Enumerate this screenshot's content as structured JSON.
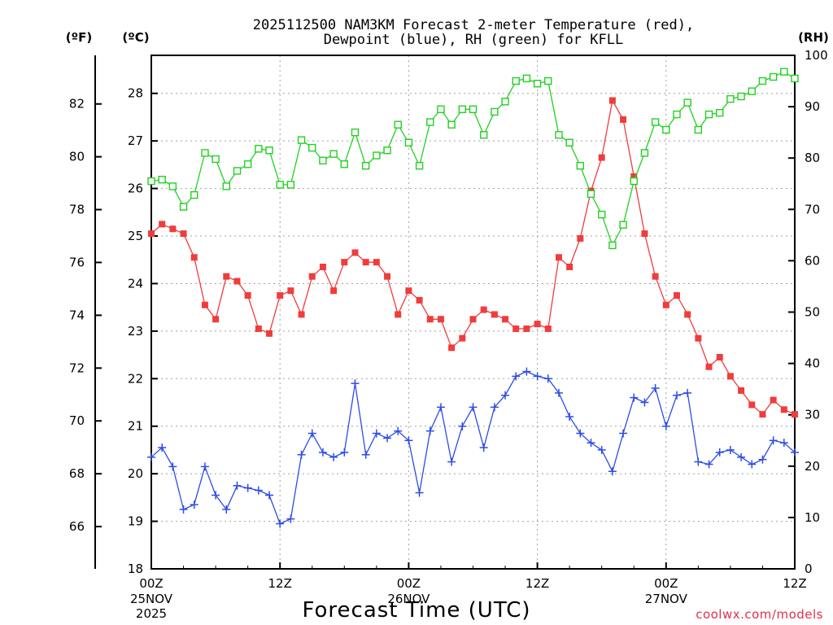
{
  "chart_data": {
    "type": "line",
    "title_line1": "2025112500 NAM3KM Forecast 2-meter Temperature (red),",
    "title_line2": "Dewpoint (blue), RH (green) for KFLL",
    "xlabel": "Forecast Time (UTC)",
    "credit": "coolwx.com/models",
    "left_outer_unit": "(ºF)",
    "left_inner_unit": "(ºC)",
    "right_unit": "(RH)",
    "ylim_c": [
      18,
      28.8
    ],
    "ylim_rh": [
      0,
      100
    ],
    "xlim_hours": [
      0,
      60
    ],
    "x_ticks": [
      {
        "hour": 0,
        "label": "00Z",
        "date": "25NOV",
        "year": "2025"
      },
      {
        "hour": 12,
        "label": "12Z",
        "date": "",
        "year": ""
      },
      {
        "hour": 24,
        "label": "00Z",
        "date": "26NOV",
        "year": ""
      },
      {
        "hour": 36,
        "label": "12Z",
        "date": "",
        "year": ""
      },
      {
        "hour": 48,
        "label": "00Z",
        "date": "27NOV",
        "year": ""
      },
      {
        "hour": 60,
        "label": "12Z",
        "date": "",
        "year": ""
      }
    ],
    "c_ticks": [
      18,
      19,
      20,
      21,
      22,
      23,
      24,
      25,
      26,
      27,
      28
    ],
    "f_ticks": [
      66,
      68,
      70,
      72,
      74,
      76,
      78,
      80,
      82
    ],
    "rh_ticks": [
      0,
      10,
      20,
      30,
      40,
      50,
      60,
      70,
      80,
      90,
      100
    ],
    "hours": [
      0,
      1,
      2,
      3,
      4,
      5,
      6,
      7,
      8,
      9,
      10,
      11,
      12,
      13,
      14,
      15,
      16,
      17,
      18,
      19,
      20,
      21,
      22,
      23,
      24,
      25,
      26,
      27,
      28,
      29,
      30,
      31,
      32,
      33,
      34,
      35,
      36,
      37,
      38,
      39,
      40,
      41,
      42,
      43,
      44,
      45,
      46,
      47,
      48,
      49,
      50,
      51,
      52,
      53,
      54,
      55,
      56,
      57,
      58,
      59,
      60
    ],
    "series": [
      {
        "name": "Temperature",
        "unit": "C",
        "color": "#f03c3c",
        "marker": "filled-square",
        "values": [
          25.05,
          25.25,
          25.15,
          25.05,
          24.55,
          23.55,
          23.25,
          24.15,
          24.05,
          23.75,
          23.05,
          22.95,
          23.75,
          23.85,
          23.35,
          24.15,
          24.35,
          23.85,
          24.45,
          24.65,
          24.45,
          24.45,
          24.15,
          23.35,
          23.85,
          23.65,
          23.25,
          23.25,
          22.65,
          22.85,
          23.25,
          23.45,
          23.35,
          23.25,
          23.05,
          23.05,
          23.15,
          23.05,
          24.55,
          24.35,
          24.95,
          25.95,
          26.65,
          27.85,
          27.45,
          26.25,
          25.05,
          24.15,
          23.55,
          23.75,
          23.35,
          22.85,
          22.25,
          22.45,
          22.05,
          21.75,
          21.45,
          21.25,
          21.55,
          21.35,
          21.25
        ]
      },
      {
        "name": "Dewpoint",
        "unit": "C",
        "color": "#2c4ce8",
        "marker": "plus",
        "values": [
          20.35,
          20.55,
          20.15,
          19.25,
          19.35,
          20.15,
          19.55,
          19.25,
          19.75,
          19.7,
          19.65,
          19.55,
          18.95,
          19.05,
          20.4,
          20.85,
          20.45,
          20.35,
          20.45,
          21.9,
          20.4,
          20.85,
          20.75,
          20.9,
          20.7,
          19.6,
          20.9,
          21.4,
          20.25,
          21.0,
          21.4,
          20.55,
          21.4,
          21.65,
          22.05,
          22.15,
          22.05,
          22.0,
          21.7,
          21.2,
          20.85,
          20.65,
          20.5,
          20.05,
          20.85,
          21.6,
          21.5,
          21.8,
          21.0,
          21.65,
          21.7,
          20.25,
          20.2,
          20.45,
          20.5,
          20.35,
          20.2,
          20.3,
          20.7,
          20.65,
          20.45
        ]
      },
      {
        "name": "RH",
        "unit": "%",
        "color": "#22d022",
        "marker": "open-square",
        "values": [
          75.5,
          75.8,
          74.5,
          70.5,
          72.8,
          81.0,
          79.8,
          74.5,
          77.5,
          78.8,
          81.8,
          81.5,
          74.8,
          74.8,
          83.5,
          82.0,
          79.5,
          80.8,
          78.8,
          85.0,
          78.5,
          80.5,
          81.5,
          86.5,
          83.0,
          78.5,
          87.0,
          89.5,
          86.5,
          89.5,
          89.5,
          84.5,
          89.0,
          91.0,
          95.0,
          95.5,
          94.5,
          95.0,
          84.5,
          83.0,
          78.5,
          73.0,
          69.0,
          63.0,
          67.0,
          75.5,
          81.0,
          87.0,
          85.5,
          88.5,
          90.8,
          85.5,
          88.5,
          88.8,
          91.5,
          92.0,
          93.0,
          95.0,
          95.8,
          96.8,
          95.5
        ]
      }
    ]
  }
}
